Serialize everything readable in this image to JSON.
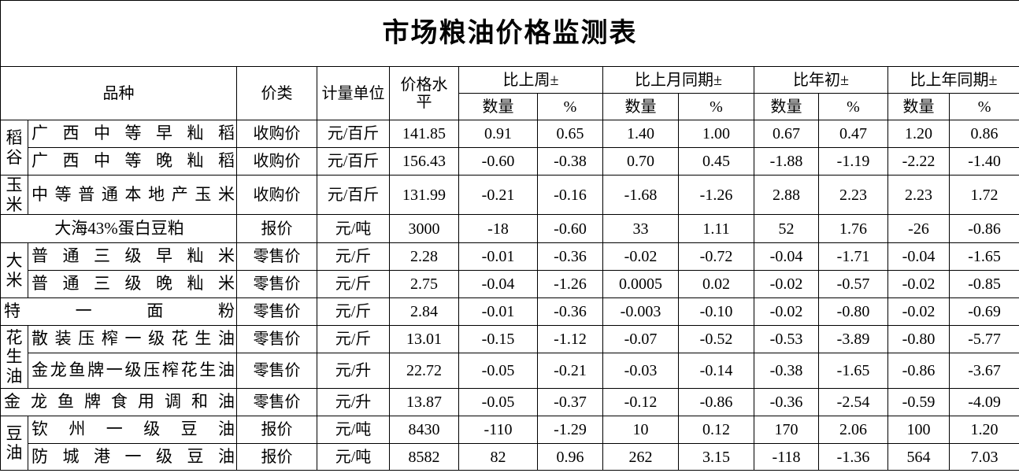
{
  "title": "市场粮油价格监测表",
  "headers": {
    "variety": "品种",
    "price_type": "价类",
    "unit": "计量单位",
    "price": "价格水平",
    "groups": [
      "比上周±",
      "比上月同期±",
      "比年初±",
      "比上年同期±"
    ],
    "sub": [
      "数量",
      "%"
    ]
  },
  "groups": [
    {
      "category": "稻谷",
      "rows": [
        {
          "name": "广西中等早籼稻",
          "type": "收购价",
          "unit": "元/百斤",
          "price": "141.85",
          "values": [
            "0.91",
            "0.65",
            "1.40",
            "1.00",
            "0.67",
            "0.47",
            "1.20",
            "0.86"
          ]
        },
        {
          "name": "广西中等晚籼稻",
          "type": "收购价",
          "unit": "元/百斤",
          "price": "156.43",
          "values": [
            "-0.60",
            "-0.38",
            "0.70",
            "0.45",
            "-1.88",
            "-1.19",
            "-2.22",
            "-1.40"
          ]
        }
      ]
    },
    {
      "category": "玉米",
      "rows": [
        {
          "name": "中等普通本地产玉米",
          "type": "收购价",
          "unit": "元/百斤",
          "price": "131.99",
          "values": [
            "-0.21",
            "-0.16",
            "-1.68",
            "-1.26",
            "2.88",
            "2.23",
            "2.23",
            "1.72"
          ]
        }
      ]
    },
    {
      "category": "",
      "center": true,
      "rows": [
        {
          "name": "大海43%蛋白豆粕",
          "type": "报价",
          "unit": "元/吨",
          "price": "3000",
          "values": [
            "-18",
            "-0.60",
            "33",
            "1.11",
            "52",
            "1.76",
            "-26",
            "-0.86"
          ]
        }
      ]
    },
    {
      "category": "大米",
      "rows": [
        {
          "name": "普通三级早籼米",
          "type": "零售价",
          "unit": "元/斤",
          "price": "2.28",
          "values": [
            "-0.01",
            "-0.36",
            "-0.02",
            "-0.72",
            "-0.04",
            "-1.71",
            "-0.04",
            "-1.65"
          ]
        },
        {
          "name": "普通三级晚籼米",
          "type": "零售价",
          "unit": "元/斤",
          "price": "2.75",
          "values": [
            "-0.04",
            "-1.26",
            "0.0005",
            "0.02",
            "-0.02",
            "-0.57",
            "-0.02",
            "-0.85"
          ]
        }
      ]
    },
    {
      "category": "",
      "rows": [
        {
          "name": "特一面粉",
          "type": "零售价",
          "unit": "元/斤",
          "price": "2.84",
          "values": [
            "-0.01",
            "-0.36",
            "-0.003",
            "-0.10",
            "-0.02",
            "-0.80",
            "-0.02",
            "-0.69"
          ]
        }
      ]
    },
    {
      "category": "花生油",
      "rows": [
        {
          "name": "散装压榨一级花生油",
          "type": "零售价",
          "unit": "元/斤",
          "price": "13.01",
          "values": [
            "-0.15",
            "-1.12",
            "-0.07",
            "-0.52",
            "-0.53",
            "-3.89",
            "-0.80",
            "-5.77"
          ]
        },
        {
          "name": "金龙鱼牌一级压榨花生油",
          "type": "零售价",
          "unit": "元/升",
          "price": "22.72",
          "values": [
            "-0.05",
            "-0.21",
            "-0.03",
            "-0.14",
            "-0.38",
            "-1.65",
            "-0.86",
            "-3.67"
          ]
        }
      ]
    },
    {
      "category": "",
      "rows": [
        {
          "name": "金龙鱼牌食用调和油",
          "type": "零售价",
          "unit": "元/升",
          "price": "13.87",
          "values": [
            "-0.05",
            "-0.37",
            "-0.12",
            "-0.86",
            "-0.36",
            "-2.54",
            "-0.59",
            "-4.09"
          ]
        }
      ]
    },
    {
      "category": "豆油",
      "rows": [
        {
          "name": "钦州一级豆油",
          "type": "报价",
          "unit": "元/吨",
          "price": "8430",
          "values": [
            "-110",
            "-1.29",
            "10",
            "0.12",
            "170",
            "2.06",
            "100",
            "1.20"
          ]
        },
        {
          "name": "防城港一级豆油",
          "type": "报价",
          "unit": "元/吨",
          "price": "8582",
          "values": [
            "82",
            "0.96",
            "262",
            "3.15",
            "-118",
            "-1.36",
            "564",
            "7.03"
          ]
        }
      ]
    }
  ]
}
